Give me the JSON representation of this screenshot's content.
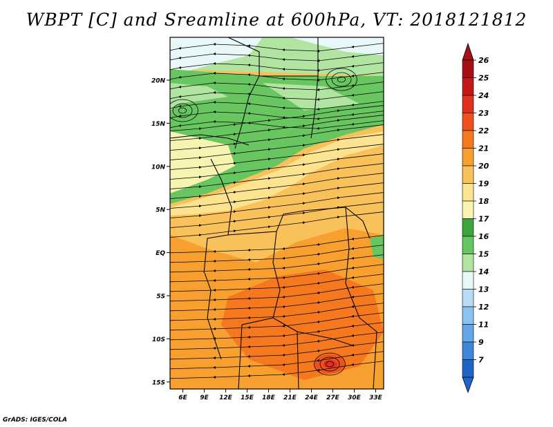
{
  "title": "WBPT [C] and Sreamline at 600hPa, VT: 2018121812",
  "footer": "GrADS: IGES/COLA",
  "map": {
    "lon_labels": [
      "6E",
      "9E",
      "12E",
      "15E",
      "18E",
      "21E",
      "24E",
      "27E",
      "30E",
      "33E"
    ],
    "lat_labels": [
      "20N",
      "15N",
      "10N",
      "5N",
      "EQ",
      "5S",
      "10S",
      "15S"
    ]
  },
  "colorbar": {
    "labels": [
      "26",
      "25",
      "24",
      "23",
      "22",
      "21",
      "20",
      "19",
      "18",
      "17",
      "16",
      "15",
      "14",
      "13",
      "12",
      "11",
      "9",
      "7"
    ],
    "colors": [
      "#a50f15",
      "#c41818",
      "#e03020",
      "#f0521e",
      "#f5781e",
      "#f7a030",
      "#f9c15a",
      "#fbe390",
      "#f7f3b0",
      "#3ca63c",
      "#68c660",
      "#b0e4a0",
      "#e8f8f8",
      "#b8dcf5",
      "#8cc2f0",
      "#64a6e6",
      "#3e86d8",
      "#1f64c8"
    ],
    "top_color": "#a50f15",
    "bottom_color": "#1f64c8"
  },
  "colors": {
    "land_green": "#68c660",
    "land_yellow": "#f7f3b0",
    "land_orange": "#f5a030",
    "land_hot": "#f0521e",
    "border": "#000000"
  }
}
